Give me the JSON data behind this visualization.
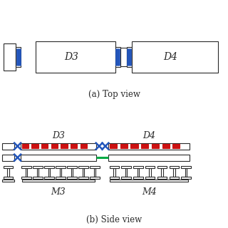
{
  "bg_color": "#ffffff",
  "line_color": "#2a2a2a",
  "blue_color": "#2255bb",
  "red_color": "#cc1111",
  "green_color": "#00aa44",
  "title_a": "(a) Top view",
  "title_b": "(b) Side view",
  "label_D3": "D3",
  "label_D4": "D4",
  "label_M3": "M3",
  "label_M4": "M4",
  "fig_width": 3.2,
  "fig_height": 3.2,
  "dpi": 100
}
